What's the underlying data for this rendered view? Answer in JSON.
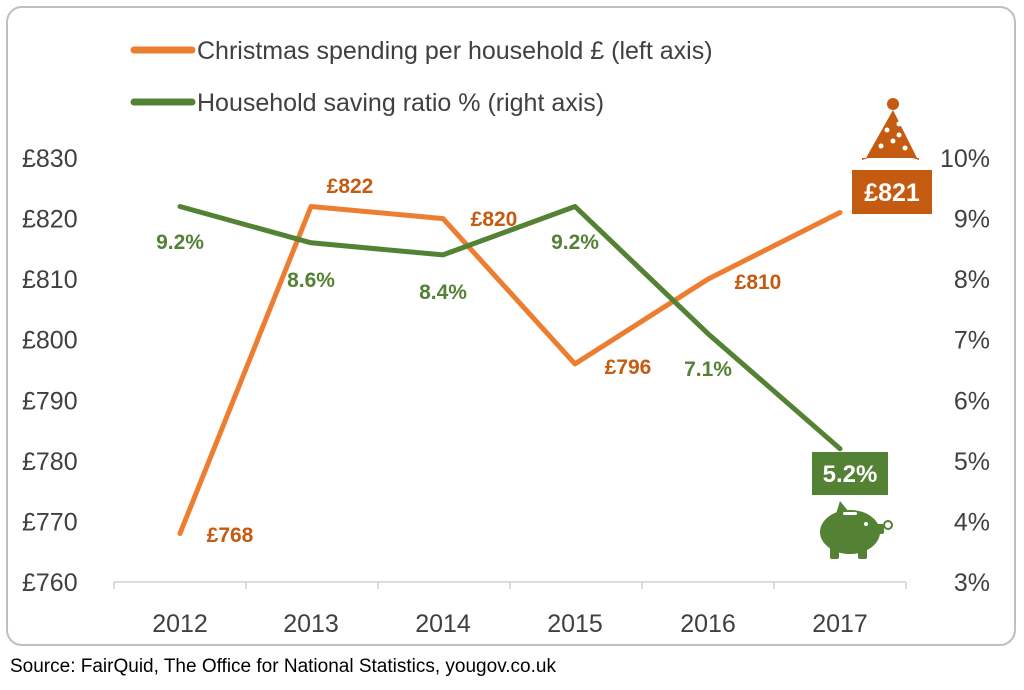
{
  "chart_data": {
    "type": "line",
    "x": [
      "2012",
      "2013",
      "2014",
      "2015",
      "2016",
      "2017"
    ],
    "series": [
      {
        "name": "Christmas spending per household £ (left axis)",
        "axis": "left",
        "color": "#ed7d31",
        "label_color": "#c55a11",
        "values": [
          768,
          822,
          820,
          796,
          810,
          821
        ],
        "labels": [
          "£768",
          "£822",
          "£820",
          "£796",
          "£810",
          "£821"
        ]
      },
      {
        "name": "Household saving ratio % (right axis)",
        "axis": "right",
        "color": "#548235",
        "label_color": "#548235",
        "values": [
          9.2,
          8.6,
          8.4,
          9.2,
          7.1,
          5.2
        ],
        "labels": [
          "9.2%",
          "8.6%",
          "8.4%",
          "9.2%",
          "7.1%",
          "5.2%"
        ]
      }
    ],
    "y_left": {
      "lim": [
        760,
        830
      ],
      "ticks": [
        "£760",
        "£770",
        "£780",
        "£790",
        "£800",
        "£810",
        "£820",
        "£830"
      ]
    },
    "y_right": {
      "lim": [
        3,
        10
      ],
      "ticks": [
        "3%",
        "4%",
        "5%",
        "6%",
        "7%",
        "8%",
        "9%",
        "10%"
      ]
    },
    "legend_position": "top-left",
    "grid": false,
    "highlight": {
      "spending_badge": "£821",
      "saving_badge": "5.2%",
      "party_hat_icon": "party-hat-icon",
      "piggy_bank_icon": "piggy-bank-icon"
    }
  },
  "source": "Source: FairQuid, The Office for National Statistics, yougov.co.uk"
}
